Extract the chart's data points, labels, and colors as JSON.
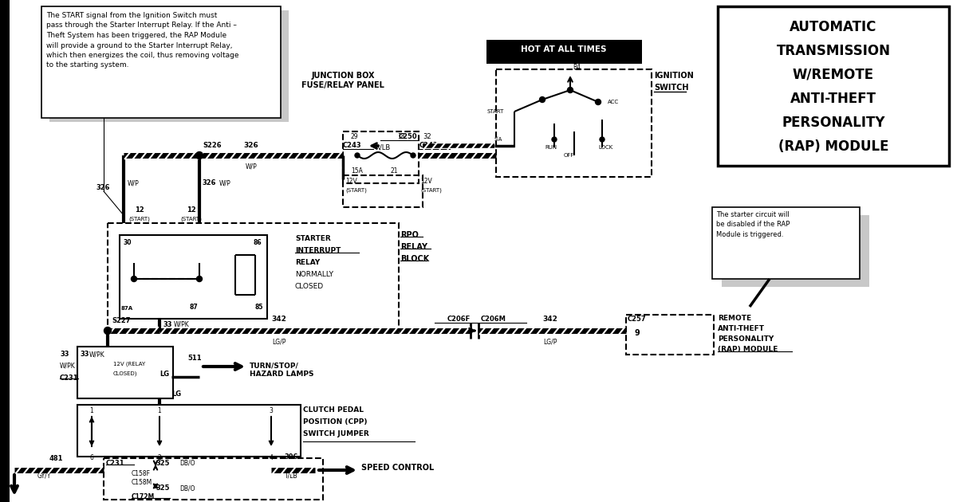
{
  "bg_color": "#ffffff",
  "fig_width": 12.0,
  "fig_height": 6.3,
  "main_title_lines": [
    "AUTOMATIC",
    "TRANSMISSION",
    "W/REMOTE",
    "ANTI-THEFT",
    "PERSONALITY",
    "(RAP) MODULE"
  ],
  "note1_text": "The START signal from the Ignition Switch must\npass through the Starter Interrupt Relay. If the Anti –\nTheft System has been triggered, the RAP Module\nwill provide a ground to the Starter Interrupt Relay,\nwhich then energizes the coil, thus removing voltage\nto the starting system.",
  "note2_text": "The starter circuit will\nbe disabled if the RAP\nModule is triggered.",
  "hot_at_all_times": "HOT AT ALL TIMES",
  "junction_box_line1": "JUNCTION BOX",
  "junction_box_line2": "FUSE/RELAY PANEL",
  "ignition_switch_line1": "IGNITION",
  "ignition_switch_line2": "SWITCH",
  "rpo_line1": "RPO",
  "rpo_line2": "RELAY",
  "rpo_line3": "BLOCK",
  "starter_int_line1": "STARTER",
  "starter_int_line2": "INTERRUPT",
  "starter_int_line3": "RELAY",
  "starter_int_line4": "NORMALLY",
  "starter_int_line5": "CLOSED",
  "rap_line1": "REMOTE",
  "rap_line2": "ANTI-THEFT",
  "rap_line3": "PERSONALITY",
  "rap_line4": "(RAP) MODULE",
  "turn_hazard": "TURN/STOP/\nHAZARD LAMPS",
  "clutch_pedal_line1": "CLUTCH PEDAL",
  "clutch_pedal_line2": "POSITION (CPP)",
  "clutch_pedal_line3": "SWITCH JUMPER",
  "speed_control": "SPEED CONTROL"
}
